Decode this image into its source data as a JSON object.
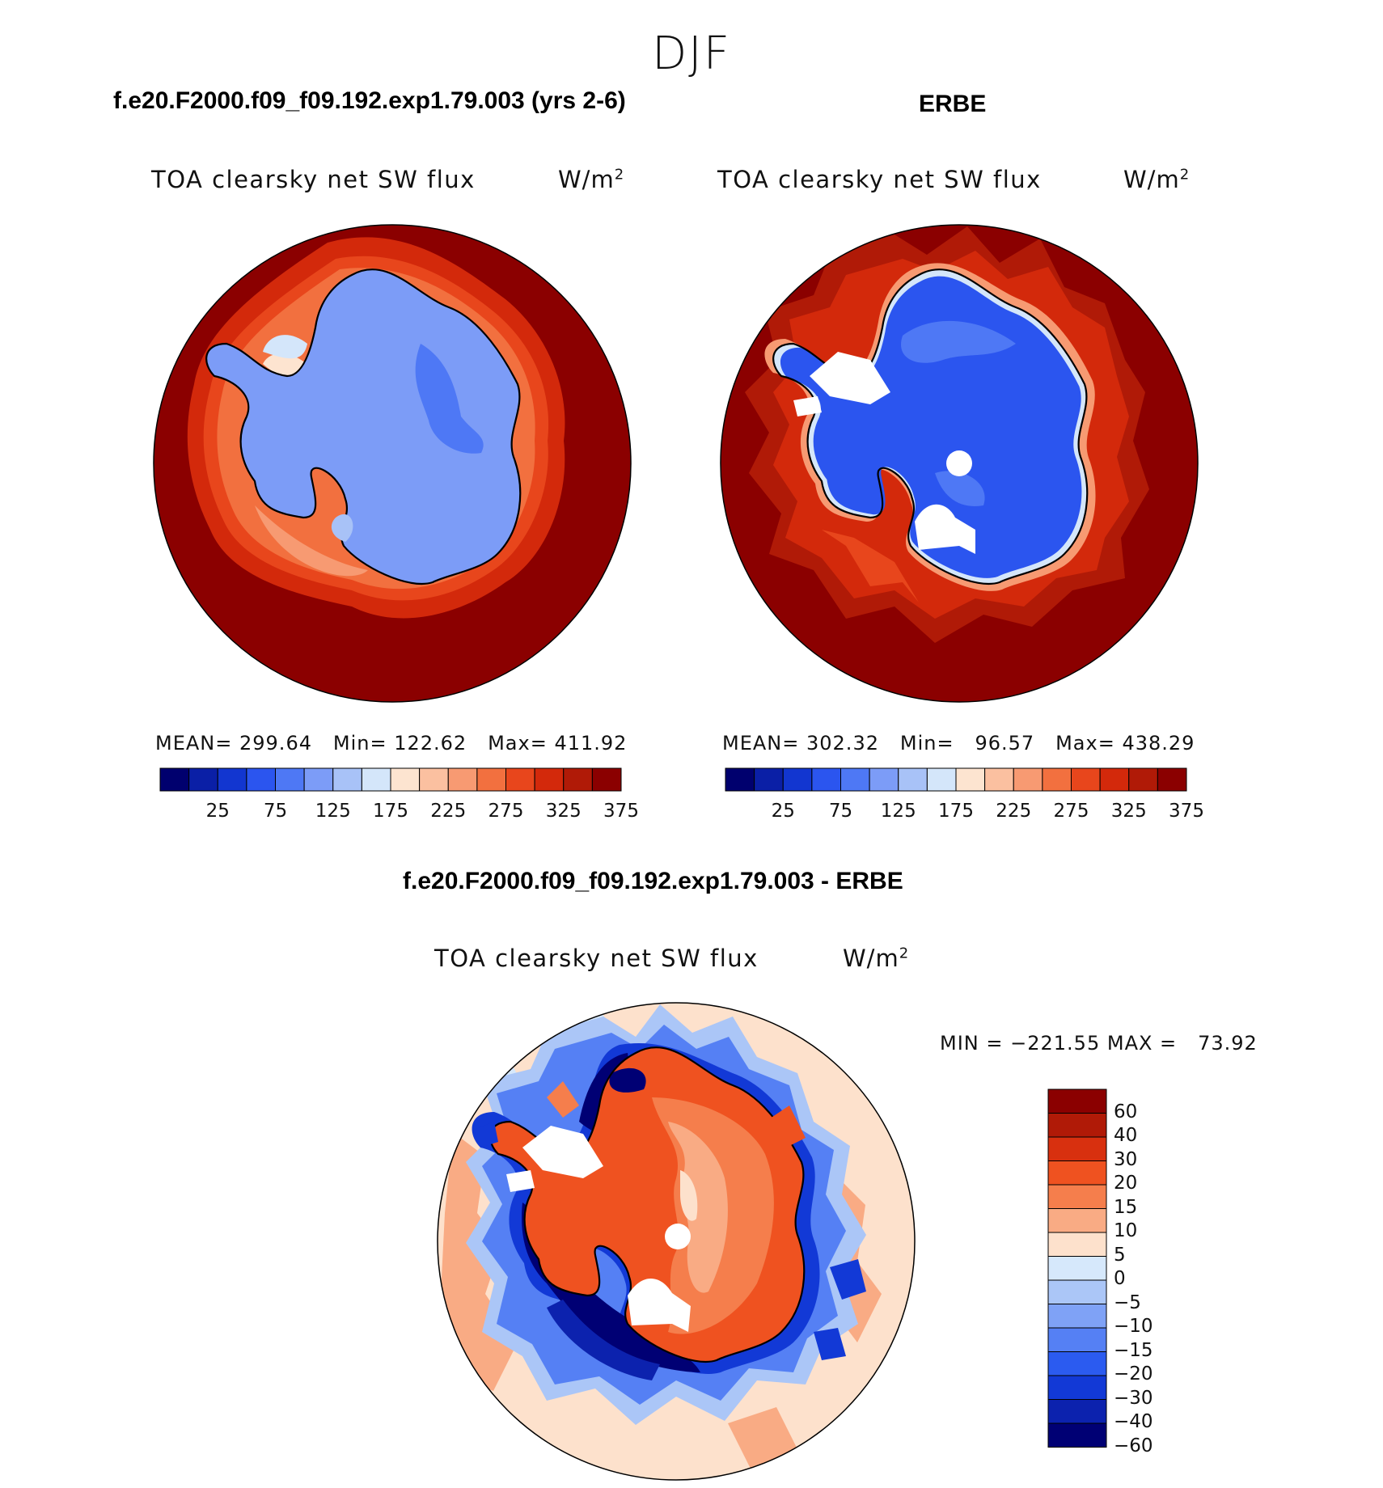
{
  "season": "DJF",
  "panels": [
    {
      "id": "model",
      "case_title": "f.e20.F2000.f09_f09.192.exp1.79.003 (yrs 2-6)",
      "variable": "TOA clearsky net SW flux",
      "unit_base": "W/m",
      "unit_exp": "2",
      "stats": {
        "mean_label": "MEAN=",
        "mean": "299.64",
        "min_label": "Min=",
        "min": "122.62",
        "max_label": "Max=",
        "max": "411.92"
      }
    },
    {
      "id": "obs",
      "case_title": "ERBE",
      "variable": "TOA clearsky net SW flux",
      "unit_base": "W/m",
      "unit_exp": "2",
      "stats": {
        "mean_label": "MEAN=",
        "mean": "302.32",
        "min_label": "Min=",
        "min": "96.57",
        "max_label": "Max=",
        "max": "438.29"
      }
    }
  ],
  "difference": {
    "case_title": "f.e20.F2000.f09_f09.192.exp1.79.003 - ERBE",
    "variable": "TOA clearsky net SW flux",
    "unit_base": "W/m",
    "unit_exp": "2",
    "minmax": {
      "min_label": "MIN =",
      "min": "−221.55",
      "max_label": "MAX =",
      "max": "73.92"
    }
  },
  "colorbars": {
    "absolute": {
      "colors": [
        "#00006e",
        "#0a1fa6",
        "#1236d0",
        "#2b55ef",
        "#4e78f5",
        "#7c9cf7",
        "#a8c2f7",
        "#d4e6fa",
        "#fde4d0",
        "#fbc0a0",
        "#f79a72",
        "#f2703f",
        "#e8461c",
        "#d3290b",
        "#b01a07",
        "#8b0000"
      ],
      "ticks": [
        "25",
        "75",
        "125",
        "175",
        "225",
        "275",
        "325",
        "375"
      ]
    },
    "difference": {
      "colors": [
        "#8b0000",
        "#b01a07",
        "#d8300f",
        "#ef5220",
        "#f57e4c",
        "#f9ab84",
        "#fde1cc",
        "#d6e8fb",
        "#abc6f7",
        "#7fa2f6",
        "#5580f4",
        "#2b5bf0",
        "#1239d6",
        "#0c22ae",
        "#000074"
      ],
      "ticks": [
        "60",
        "40",
        "30",
        "20",
        "15",
        "10",
        "5",
        "0",
        "−5",
        "−10",
        "−15",
        "−20",
        "−30",
        "−40",
        "−60"
      ]
    }
  }
}
